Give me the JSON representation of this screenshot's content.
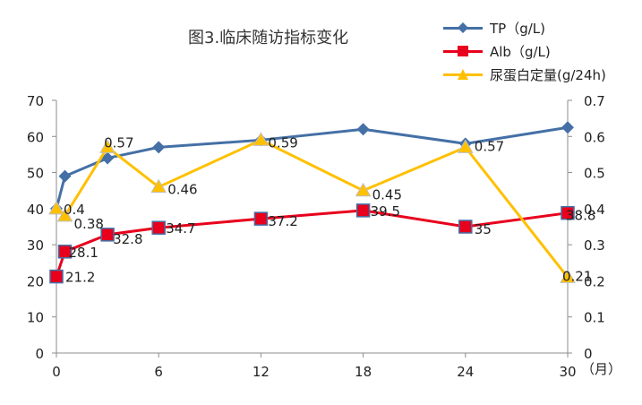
{
  "chart_data": {
    "type": "line",
    "title": "图3.临床随访指标变化",
    "x_unit_label": "（月）",
    "x": [
      0,
      0.5,
      3,
      6,
      12,
      18,
      24,
      30
    ],
    "xticks": [
      "0",
      "6",
      "12",
      "18",
      "24",
      "30"
    ],
    "xlim": [
      0,
      30
    ],
    "ylim_left": [
      0,
      70
    ],
    "yticks_left": [
      "0",
      "10",
      "20",
      "30",
      "40",
      "50",
      "60",
      "70"
    ],
    "ylim_right": [
      0,
      0.7
    ],
    "yticks_right": [
      "0",
      "0.1",
      "0.2",
      "0.3",
      "0.4",
      "0.5",
      "0.6",
      "0.7"
    ],
    "grid": false,
    "legend_position": "top-right",
    "series": [
      {
        "name": "TP（g/L)",
        "axis": "left",
        "color": "#4470A6",
        "marker": "diamond",
        "values": [
          40,
          49,
          54,
          57,
          59,
          62,
          58,
          62.5
        ],
        "labels": []
      },
      {
        "name": "Alb（g/L)",
        "axis": "left",
        "color": "#E8001C",
        "marker": "square",
        "values": [
          21.2,
          28.1,
          32.8,
          34.7,
          37.2,
          39.5,
          35,
          38.8
        ],
        "labels": [
          "21.2",
          "28.1",
          "32.8",
          "34.7",
          "37.2",
          "39.5",
          "35",
          "38.8"
        ]
      },
      {
        "name": "尿蛋白定量(g/24h)",
        "axis": "right",
        "color": "#FFC000",
        "marker": "triangle",
        "values": [
          0.4,
          0.38,
          0.57,
          0.46,
          0.59,
          0.45,
          0.57,
          0.21
        ],
        "labels": [
          "0.4",
          "0.38",
          "0.57",
          "0.46",
          "0.59",
          "0.45",
          "0.57",
          "0.21"
        ]
      }
    ]
  }
}
